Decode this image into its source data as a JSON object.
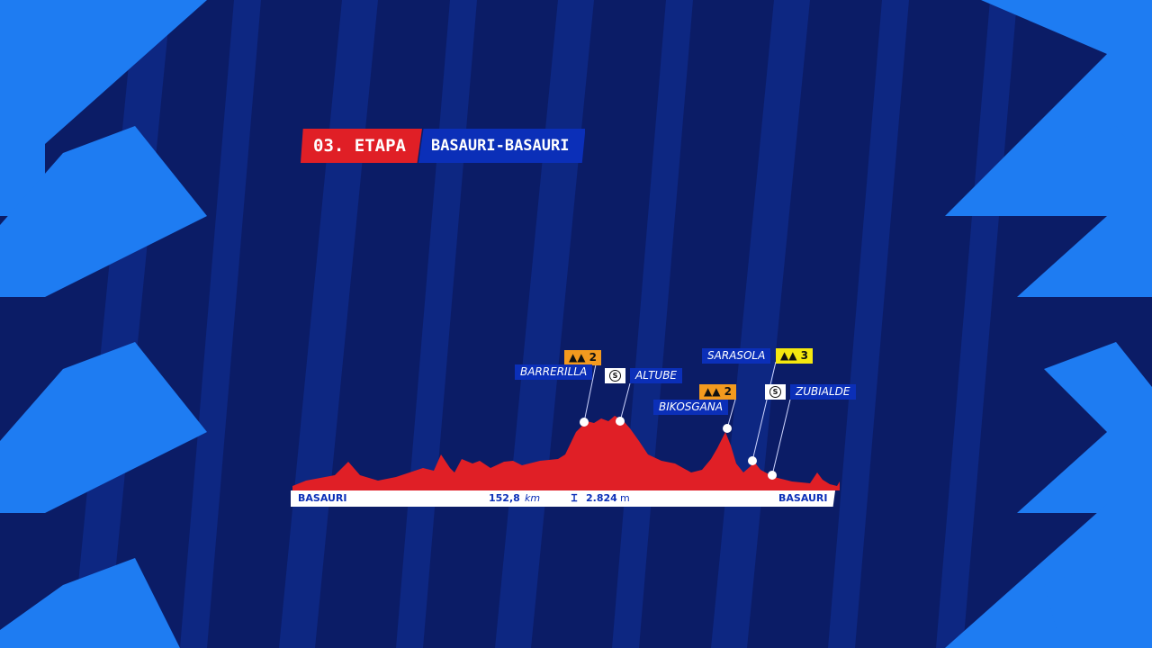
{
  "header": {
    "stage": "03. ETAPA",
    "route": "BASAURI-BASAURI"
  },
  "profile": {
    "start": "BASAURI",
    "finish": "BASAURI",
    "distance": "152,8",
    "distance_unit": "km",
    "elevation": "2.824",
    "elevation_unit": "m",
    "colors": {
      "profile": "#e01f26",
      "cat2": "#f39a1e",
      "cat3": "#f5e80f",
      "sprint": "#ffffff",
      "label_bg": "#0b2fb8"
    }
  },
  "points": [
    {
      "name": "BARRERILLA",
      "type": "mountain-icon",
      "category": "2"
    },
    {
      "name": "ALTUBE",
      "type": "sprint-icon",
      "symbol": "S"
    },
    {
      "name": "BIKOSGANA",
      "type": "mountain-icon",
      "category": "2"
    },
    {
      "name": "SARASOLA",
      "type": "mountain-icon",
      "category": "3"
    },
    {
      "name": "ZUBIALDE",
      "type": "sprint-icon",
      "symbol": "S"
    }
  ]
}
